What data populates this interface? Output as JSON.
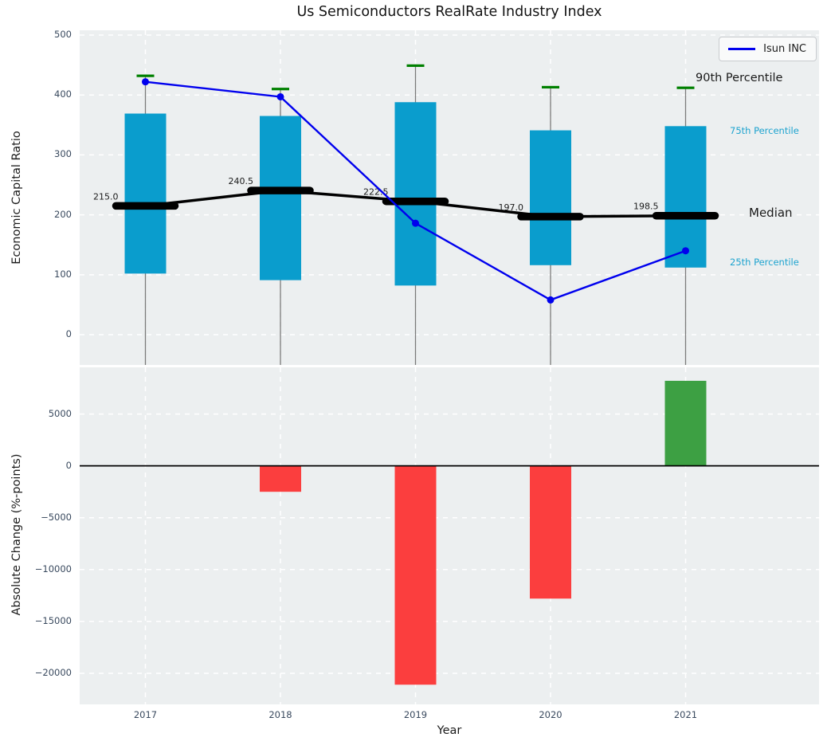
{
  "title": "Us Semiconductors RealRate Industry Index",
  "legend": {
    "label": "Isun INC"
  },
  "annotations": {
    "p90": "90th Percentile",
    "p75": "75th Percentile",
    "median": "Median",
    "p25": "25th Percentile"
  },
  "colors": {
    "box": "#0a9dcd",
    "median_line": "#000000",
    "p90_cap": "#008000",
    "whisker": "#7a7a7a",
    "isun_line": "#0000ee",
    "negative_bar": "#fb3e3e",
    "positive_bar": "#3da043",
    "axes_bg": "#eceff0",
    "grid": "#ffffff",
    "tick_text": "#39495e",
    "annotation_accent": "#1da3cf",
    "text": "#1a1a1a"
  },
  "chart_data": [
    {
      "type": "box-line",
      "title": "Us Semiconductors RealRate Industry Index",
      "ylabel": "Economic Capital Ratio",
      "x": [
        2017,
        2018,
        2019,
        2020,
        2021
      ],
      "ylim": [
        -50.5,
        508
      ],
      "yticks": [
        {
          "v": 0,
          "label": "0"
        },
        {
          "v": 100,
          "label": "100"
        },
        {
          "v": 200,
          "label": "200"
        },
        {
          "v": 300,
          "label": "300"
        },
        {
          "v": 400,
          "label": "400"
        },
        {
          "v": 500,
          "label": "500"
        }
      ],
      "percentiles": {
        "p90": [
          432,
          410,
          449,
          413,
          412
        ],
        "p75": [
          369,
          365,
          388,
          341,
          348
        ],
        "median": [
          215.0,
          240.5,
          222.5,
          197.0,
          198.5
        ],
        "p25": [
          102,
          91,
          82,
          116,
          112
        ]
      },
      "median_labels": [
        "215.0",
        "240.5",
        "222.5",
        "197.0",
        "198.5"
      ],
      "series": [
        {
          "name": "Isun INC",
          "values": [
            422,
            397,
            186,
            58,
            140
          ]
        }
      ],
      "legend_position": "top-right",
      "grid": true
    },
    {
      "type": "bar",
      "ylabel": "Absolute Change (%-points)",
      "xlabel": "Year",
      "categories": [
        "2017",
        "2018",
        "2019",
        "2020",
        "2021"
      ],
      "values": [
        0,
        -2500,
        -21100,
        -12800,
        8200
      ],
      "ylim": [
        -23000,
        9500
      ],
      "yticks": [
        {
          "v": 5000,
          "label": "5000"
        },
        {
          "v": 0,
          "label": "0"
        },
        {
          "v": -5000,
          "label": "−5000"
        },
        {
          "v": -10000,
          "label": "−10000"
        },
        {
          "v": -15000,
          "label": "−15000"
        },
        {
          "v": -20000,
          "label": "−20000"
        }
      ],
      "grid": true
    }
  ]
}
